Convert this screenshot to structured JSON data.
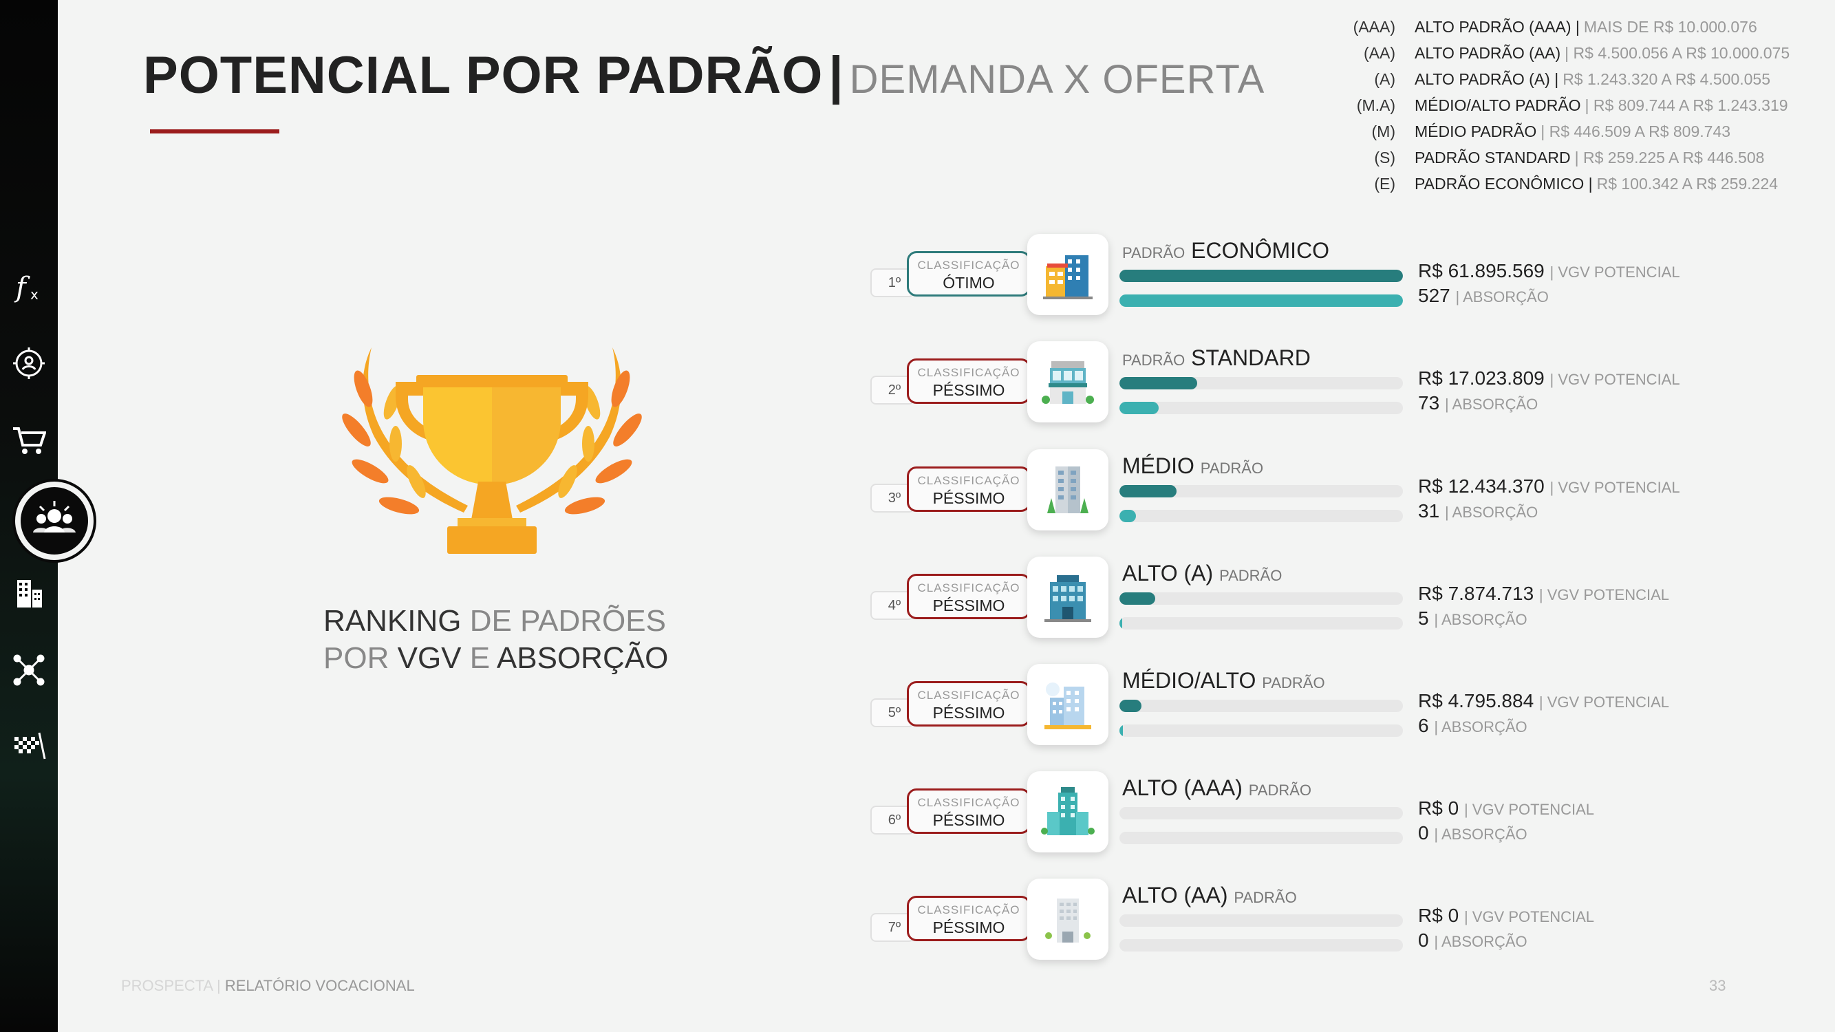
{
  "title": {
    "main": "POTENCIAL POR PADRÃO",
    "separator": "|",
    "sub": "DEMANDA X OFERTA"
  },
  "legend": [
    {
      "code": "(AAA)",
      "name": "ALTO PADRÃO (AAA) |",
      "range": "MAIS DE R$ 10.000.076"
    },
    {
      "code": "(AA)",
      "name": "ALTO PADRÃO (AA)",
      "range": "| R$ 4.500.056 A R$ 10.000.075"
    },
    {
      "code": "(A)",
      "name": "ALTO PADRÃO (A) |",
      "range": "R$ 1.243.320 A R$ 4.500.055"
    },
    {
      "code": "(M.A)",
      "name": "MÉDIO/ALTO PADRÃO",
      "range": "| R$ 809.744 A R$ 1.243.319"
    },
    {
      "code": "(M)",
      "name": "MÉDIO PADRÃO",
      "range": "| R$ 446.509 A R$ 809.743"
    },
    {
      "code": "(S)",
      "name": "PADRÃO STANDARD",
      "range": "| R$ 259.225 A R$ 446.508"
    },
    {
      "code": "(E)",
      "name": "PADRÃO ECONÔMICO |",
      "range": "R$ 100.342 A R$ 259.224"
    }
  ],
  "ranking_text": {
    "w1": "RANKING",
    "w2": "DE PADRÕES",
    "w3": "POR",
    "w4": "VGV",
    "w5": "E",
    "w6": "ABSORÇÃO"
  },
  "classification_label": "CLASSIFICAÇÃO",
  "rows": [
    {
      "rank": "1º",
      "class": "ÓTIMO",
      "good": true,
      "pre": "PADRÃO",
      "main": "ECONÔMICO",
      "post": "",
      "vgv_fill": 1.0,
      "abs_fill": 1.0,
      "vgv": "R$ 61.895.569",
      "vgv_label": "| VGV POTENCIAL",
      "abs": "527",
      "abs_label": "| ABSORÇÃO"
    },
    {
      "rank": "2º",
      "class": "PÉSSIMO",
      "good": false,
      "pre": "PADRÃO",
      "main": "STANDARD",
      "post": "",
      "vgv_fill": 0.275,
      "abs_fill": 0.139,
      "vgv": "R$ 17.023.809",
      "vgv_label": "| VGV POTENCIAL",
      "abs": "73",
      "abs_label": "| ABSORÇÃO"
    },
    {
      "rank": "3º",
      "class": "PÉSSIMO",
      "good": false,
      "pre": "",
      "main": "MÉDIO",
      "post": "PADRÃO",
      "vgv_fill": 0.201,
      "abs_fill": 0.059,
      "vgv": "R$ 12.434.370",
      "vgv_label": "| VGV POTENCIAL",
      "abs": "31",
      "abs_label": "| ABSORÇÃO"
    },
    {
      "rank": "4º",
      "class": "PÉSSIMO",
      "good": false,
      "pre": "",
      "main": "ALTO (A)",
      "post": "PADRÃO",
      "vgv_fill": 0.127,
      "abs_fill": 0.009,
      "vgv": "R$ 7.874.713",
      "vgv_label": "| VGV POTENCIAL",
      "abs": "5",
      "abs_label": "| ABSORÇÃO"
    },
    {
      "rank": "5º",
      "class": "PÉSSIMO",
      "good": false,
      "pre": "",
      "main": "MÉDIO/ALTO",
      "post": "PADRÃO",
      "vgv_fill": 0.077,
      "abs_fill": 0.011,
      "vgv": "R$ 4.795.884",
      "vgv_label": "| VGV POTENCIAL",
      "abs": "6",
      "abs_label": "| ABSORÇÃO"
    },
    {
      "rank": "6º",
      "class": "PÉSSIMO",
      "good": false,
      "pre": "",
      "main": "ALTO (AAA)",
      "post": "PADRÃO",
      "vgv_fill": 0,
      "abs_fill": 0,
      "vgv": "R$ 0",
      "vgv_label": "| VGV POTENCIAL",
      "abs": "0",
      "abs_label": "| ABSORÇÃO"
    },
    {
      "rank": "7º",
      "class": "PÉSSIMO",
      "good": false,
      "pre": "",
      "main": "ALTO (AA)",
      "post": "PADRÃO",
      "vgv_fill": 0,
      "abs_fill": 0,
      "vgv": "R$ 0",
      "vgv_label": "| VGV POTENCIAL",
      "abs": "0",
      "abs_label": "| ABSORÇÃO"
    }
  ],
  "footer": {
    "brand": "PROSPECTA |",
    "report": "RELATÓRIO VOCACIONAL"
  },
  "page_number": "33",
  "sidebar_icons": [
    "function-icon",
    "target-icon",
    "cart-icon",
    "crowd-icon",
    "buildings-icon",
    "network-icon",
    "race-flag-icon"
  ],
  "colors": {
    "accent_red": "#9b1c1c",
    "teal_dark": "#277d7d",
    "teal_light": "#3bb0b0"
  }
}
